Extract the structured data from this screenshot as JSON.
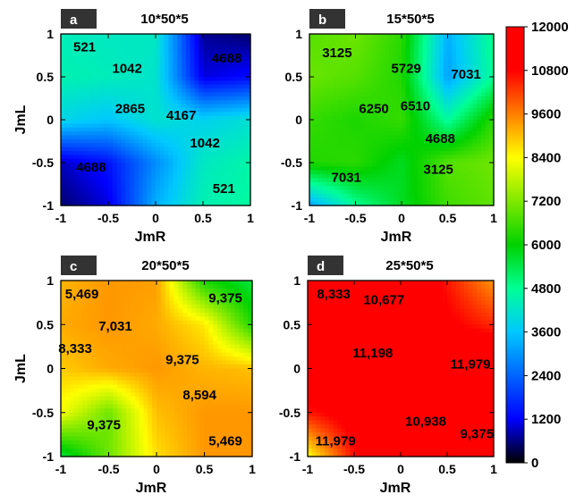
{
  "chart_data": {
    "type": "heatmap",
    "colorbar": {
      "min": 0,
      "max": 12000,
      "ticks": [
        "12000",
        "10800",
        "9600",
        "8400",
        "7200",
        "6000",
        "4800",
        "3600",
        "2400",
        "1200",
        "0"
      ],
      "colors": [
        "#000000",
        "#0000ff",
        "#00c8ff",
        "#00ff96",
        "#00d200",
        "#ffff00",
        "#ff0000",
        "#ff0000",
        "#ffffff"
      ],
      "color_stops": [
        0,
        1200,
        3600,
        4800,
        6000,
        8400,
        10800,
        11999,
        12000
      ]
    },
    "panels": [
      {
        "letter": "a",
        "title": "10*50*5",
        "xlabel": "JmR",
        "ylabel": "JmL",
        "x": [
          -1,
          -0.5,
          0,
          0.5,
          1
        ],
        "y": [
          -1,
          -0.5,
          0,
          0.5,
          1
        ],
        "x_ticks": [
          "-1",
          "-0.5",
          "0",
          "0.5",
          "1"
        ],
        "y_ticks": [
          "1",
          "0.5",
          "0",
          "-0.5",
          "-1"
        ],
        "z": [
          [
            4400,
            4300,
            4300,
            700,
            500
          ],
          [
            4500,
            4400,
            4200,
            1042,
            1300
          ],
          [
            3900,
            3600,
            4167,
            3800,
            4100
          ],
          [
            900,
            1400,
            2865,
            4300,
            4600
          ],
          [
            521,
            1042,
            3300,
            4500,
            4688
          ]
        ],
        "annotations": [
          {
            "text": "521",
            "x": -0.75,
            "y": 0.85
          },
          {
            "text": "1042",
            "x": -0.3,
            "y": 0.6
          },
          {
            "text": "4688",
            "x": 0.75,
            "y": 0.72
          },
          {
            "text": "2865",
            "x": -0.27,
            "y": 0.13
          },
          {
            "text": "4167",
            "x": 0.27,
            "y": 0.05
          },
          {
            "text": "1042",
            "x": 0.52,
            "y": -0.27
          },
          {
            "text": "4688",
            "x": -0.68,
            "y": -0.55
          },
          {
            "text": "521",
            "x": 0.72,
            "y": -0.8
          }
        ]
      },
      {
        "letter": "b",
        "title": "15*50*5",
        "xlabel": "JmR",
        "ylabel": "JmL",
        "x": [
          -1,
          -0.5,
          0,
          0.5,
          1
        ],
        "y": [
          -1,
          -0.5,
          0,
          0.5,
          1
        ],
        "x_ticks": [
          "-1",
          "-0.5",
          "0",
          "0.5",
          "1"
        ],
        "y_ticks": [
          "1",
          "0.5",
          "0",
          "-0.5",
          "-1"
        ],
        "z": [
          [
            6800,
            7031,
            6400,
            3300,
            4900
          ],
          [
            7000,
            6800,
            6300,
            3125,
            4800
          ],
          [
            6500,
            6250,
            6510,
            4688,
            6400
          ],
          [
            6300,
            6400,
            5729,
            6800,
            7031
          ],
          [
            3125,
            4800,
            5729,
            6600,
            6900
          ]
        ],
        "annotations": [
          {
            "text": "3125",
            "x": -0.7,
            "y": 0.78
          },
          {
            "text": "5729",
            "x": 0.05,
            "y": 0.6
          },
          {
            "text": "7031",
            "x": 0.7,
            "y": 0.53
          },
          {
            "text": "6250",
            "x": -0.3,
            "y": 0.13
          },
          {
            "text": "6510",
            "x": 0.15,
            "y": 0.16
          },
          {
            "text": "4688",
            "x": 0.42,
            "y": -0.22
          },
          {
            "text": "7031",
            "x": -0.6,
            "y": -0.67
          },
          {
            "text": "3125",
            "x": 0.4,
            "y": -0.58
          }
        ]
      },
      {
        "letter": "c",
        "title": "20*50*5",
        "xlabel": "JmR",
        "ylabel": "JmL",
        "x": [
          -1,
          -0.5,
          0,
          0.5,
          1
        ],
        "y": [
          -1,
          -0.5,
          0,
          0.5,
          1
        ],
        "x_ticks": [
          "-1",
          "-0.5",
          "0",
          "0.5",
          "1"
        ],
        "y_ticks": [
          "1",
          "0.5",
          "0",
          "-0.5",
          "-1"
        ],
        "z": [
          [
            9100,
            9375,
            9300,
            6200,
            5469
          ],
          [
            9200,
            9375,
            9200,
            8594,
            6300
          ],
          [
            8900,
            9200,
            9375,
            9100,
            9000
          ],
          [
            8333,
            7031,
            9000,
            9375,
            9375
          ],
          [
            5469,
            7031,
            8700,
            9375,
            9375
          ]
        ],
        "annotations": [
          {
            "text": "5,469",
            "x": -0.78,
            "y": 0.85
          },
          {
            "text": "9,375",
            "x": 0.72,
            "y": 0.8
          },
          {
            "text": "7,031",
            "x": -0.43,
            "y": 0.48
          },
          {
            "text": "8,333",
            "x": -0.85,
            "y": 0.23
          },
          {
            "text": "9,375",
            "x": 0.27,
            "y": 0.1
          },
          {
            "text": "8,594",
            "x": 0.45,
            "y": -0.3
          },
          {
            "text": "9,375",
            "x": -0.55,
            "y": -0.64
          },
          {
            "text": "5,469",
            "x": 0.72,
            "y": -0.82
          }
        ]
      },
      {
        "letter": "d",
        "title": "25*50*5",
        "xlabel": "JmR",
        "ylabel": "JmL",
        "x": [
          -1,
          -0.5,
          0,
          0.5,
          1
        ],
        "y": [
          -1,
          -0.5,
          0,
          0.5,
          1
        ],
        "x_ticks": [
          "-1",
          "-0.5",
          "0",
          "0.5",
          "1"
        ],
        "y_ticks": [
          "1",
          "0.5",
          "0",
          "-0.5",
          "-1"
        ],
        "z": [
          [
            11979,
            11900,
            11800,
            10600,
            9375
          ],
          [
            11900,
            11800,
            11700,
            10938,
            10400
          ],
          [
            11700,
            11400,
            11800,
            11900,
            11979
          ],
          [
            10600,
            11198,
            11500,
            11979,
            11979
          ],
          [
            8333,
            10677,
            11600,
            11979,
            11979
          ]
        ],
        "annotations": [
          {
            "text": "8,333",
            "x": -0.72,
            "y": 0.85
          },
          {
            "text": "10,677",
            "x": -0.18,
            "y": 0.78
          },
          {
            "text": "11,198",
            "x": -0.3,
            "y": 0.18
          },
          {
            "text": "11,979",
            "x": 0.75,
            "y": 0.05
          },
          {
            "text": "10,938",
            "x": 0.27,
            "y": -0.6
          },
          {
            "text": "9,375",
            "x": 0.82,
            "y": -0.74
          },
          {
            "text": "11,979",
            "x": -0.7,
            "y": -0.82
          }
        ]
      }
    ]
  }
}
